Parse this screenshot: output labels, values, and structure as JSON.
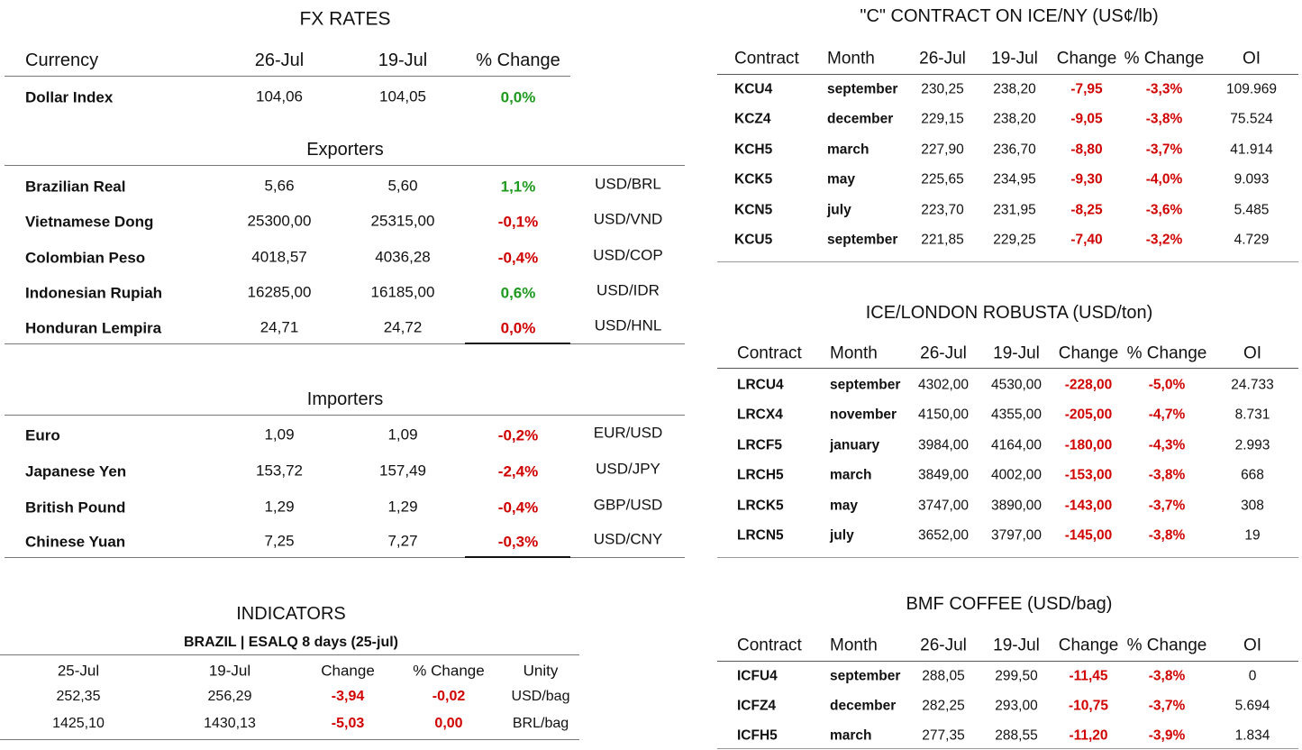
{
  "fx": {
    "title": "FX RATES",
    "headers": [
      "Currency",
      "26-Jul",
      "19-Jul",
      "% Change"
    ],
    "dollar": {
      "name": "Dollar Index",
      "d1": "104,06",
      "d2": "104,05",
      "change": "0,0%",
      "color": "#1e9a1e"
    },
    "exporters": {
      "title": "Exporters",
      "rows": [
        {
          "name": "Brazilian Real",
          "d1": "5,66",
          "d2": "5,60",
          "change": "1,1%",
          "pair": "USD/BRL",
          "color": "#1e9a1e"
        },
        {
          "name": "Vietnamese Dong",
          "d1": "25300,00",
          "d2": "25315,00",
          "change": "-0,1%",
          "pair": "USD/VND",
          "color": "#d00000"
        },
        {
          "name": "Colombian Peso",
          "d1": "4018,57",
          "d2": "4036,28",
          "change": "-0,4%",
          "pair": "USD/COP",
          "color": "#d00000"
        },
        {
          "name": "Indonesian Rupiah",
          "d1": "16285,00",
          "d2": "16185,00",
          "change": "0,6%",
          "pair": "USD/IDR",
          "color": "#1e9a1e"
        },
        {
          "name": "Honduran Lempira",
          "d1": "24,71",
          "d2": "24,72",
          "change": "0,0%",
          "pair": "USD/HNL",
          "color": "#d00000"
        }
      ]
    },
    "importers": {
      "title": "Importers",
      "rows": [
        {
          "name": "Euro",
          "d1": "1,09",
          "d2": "1,09",
          "change": "-0,2%",
          "pair": "EUR/USD",
          "color": "#d00000"
        },
        {
          "name": "Japanese Yen",
          "d1": "153,72",
          "d2": "157,49",
          "change": "-2,4%",
          "pair": "USD/JPY",
          "color": "#d00000"
        },
        {
          "name": "British Pound",
          "d1": "1,29",
          "d2": "1,29",
          "change": "-0,4%",
          "pair": "GBP/USD",
          "color": "#d00000"
        },
        {
          "name": "Chinese Yuan",
          "d1": "7,25",
          "d2": "7,27",
          "change": "-0,3%",
          "pair": "USD/CNY",
          "color": "#d00000"
        }
      ]
    }
  },
  "indicators": {
    "title": "INDICATORS",
    "subtitle": "BRAZIL | ESALQ 8 days (25-jul)",
    "headers": [
      "25-Jul",
      "19-Jul",
      "Change",
      "% Change",
      "Unity"
    ],
    "change_color": "#d00000",
    "rows": [
      [
        "252,35",
        "256,29",
        "-3,94",
        "-0,02",
        "USD/bag"
      ],
      [
        "1425,10",
        "1430,13",
        "-5,03",
        "0,00",
        "BRL/bag"
      ]
    ]
  },
  "ice_ny": {
    "title": "\"C\" CONTRACT ON ICE/NY (US¢/lb)",
    "headers": [
      "Contract",
      "Month",
      "26-Jul",
      "19-Jul",
      "Change",
      "% Change",
      "OI"
    ],
    "change_color": "#d00000",
    "rows": [
      [
        "KCU4",
        "september",
        "230,25",
        "238,20",
        "-7,95",
        "-3,3%",
        "109.969"
      ],
      [
        "KCZ4",
        "december",
        "229,15",
        "238,20",
        "-9,05",
        "-3,8%",
        "75.524"
      ],
      [
        "KCH5",
        "march",
        "227,90",
        "236,70",
        "-8,80",
        "-3,7%",
        "41.914"
      ],
      [
        "KCK5",
        "may",
        "225,65",
        "234,95",
        "-9,30",
        "-4,0%",
        "9.093"
      ],
      [
        "KCN5",
        "july",
        "223,70",
        "231,95",
        "-8,25",
        "-3,6%",
        "5.485"
      ],
      [
        "KCU5",
        "september",
        "221,85",
        "229,25",
        "-7,40",
        "-3,2%",
        "4.729"
      ]
    ]
  },
  "london": {
    "title": "ICE/LONDON ROBUSTA (USD/ton)",
    "headers": [
      "Contract",
      "Month",
      "26-Jul",
      "19-Jul",
      "Change",
      "% Change",
      "OI"
    ],
    "change_color": "#d00000",
    "rows": [
      [
        "LRCU4",
        "september",
        "4302,00",
        "4530,00",
        "-228,00",
        "-5,0%",
        "24.733"
      ],
      [
        "LRCX4",
        "november",
        "4150,00",
        "4355,00",
        "-205,00",
        "-4,7%",
        "8.731"
      ],
      [
        "LRCF5",
        "january",
        "3984,00",
        "4164,00",
        "-180,00",
        "-4,3%",
        "2.993"
      ],
      [
        "LRCH5",
        "march",
        "3849,00",
        "4002,00",
        "-153,00",
        "-3,8%",
        "668"
      ],
      [
        "LRCK5",
        "may",
        "3747,00",
        "3890,00",
        "-143,00",
        "-3,7%",
        "308"
      ],
      [
        "LRCN5",
        "july",
        "3652,00",
        "3797,00",
        "-145,00",
        "-3,8%",
        "19"
      ]
    ]
  },
  "bmf": {
    "title": "BMF COFFEE (USD/bag)",
    "headers": [
      "Contract",
      "Month",
      "26-Jul",
      "19-Jul",
      "Change",
      "% Change",
      "OI"
    ],
    "change_color": "#d00000",
    "rows": [
      [
        "ICFU4",
        "september",
        "288,05",
        "299,50",
        "-11,45",
        "-3,8%",
        "0"
      ],
      [
        "ICFZ4",
        "december",
        "282,25",
        "293,00",
        "-10,75",
        "-3,7%",
        "5.694"
      ],
      [
        "ICFH5",
        "march",
        "277,35",
        "288,55",
        "-11,20",
        "-3,9%",
        "1.834"
      ]
    ]
  }
}
